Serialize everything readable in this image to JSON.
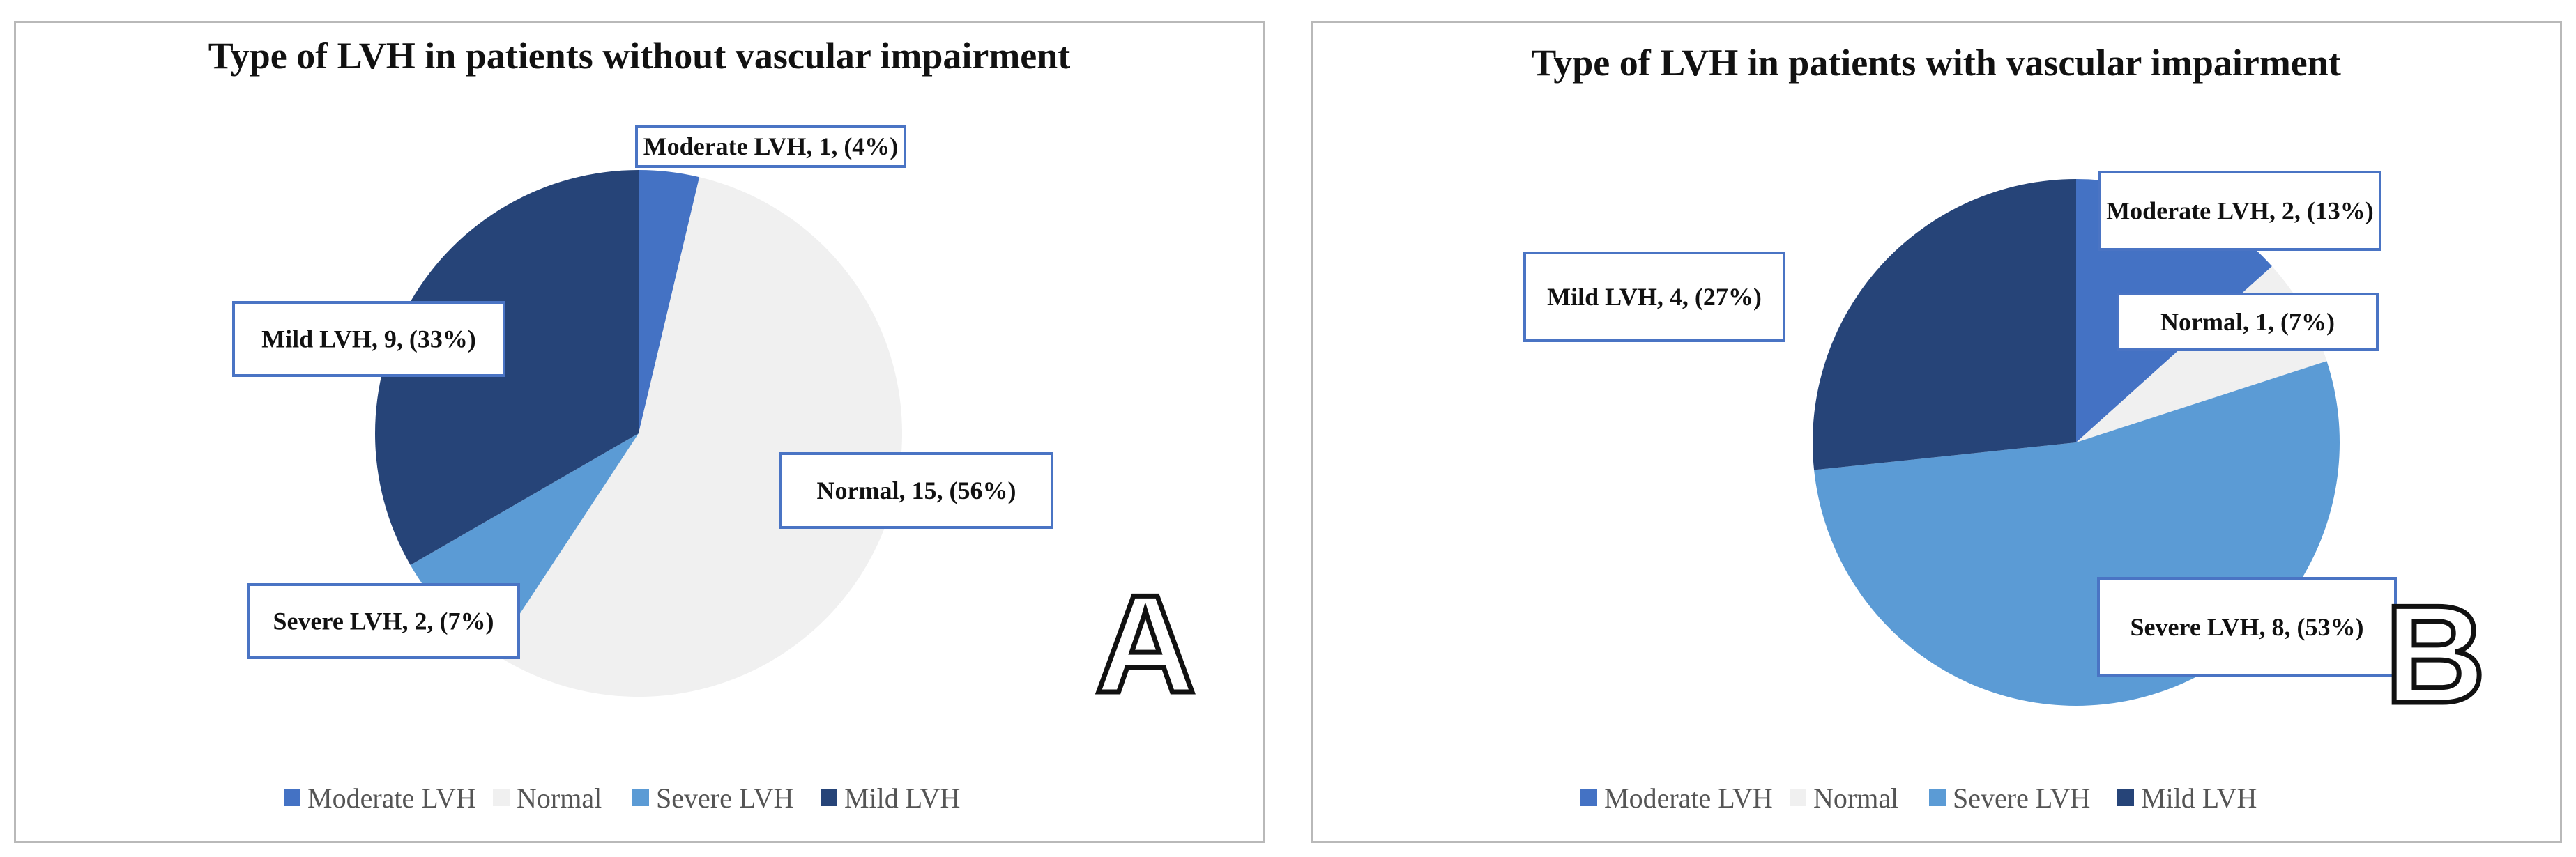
{
  "chart_data": [
    {
      "type": "pie",
      "title": "Type of LVH in patients without vascular impairment",
      "panel_label": "A",
      "categories": [
        "Moderate LVH",
        "Normal",
        "Severe LVH",
        "Mild LVH"
      ],
      "values": [
        1,
        15,
        2,
        9
      ],
      "percent_labels": [
        "(4%)",
        "(56%)",
        "(7%)",
        "(33%)"
      ],
      "data_labels": [
        "Moderate LVH, 1, (4%)",
        "Normal, 15, (56%)",
        "Severe LVH, 2, (7%)",
        "Mild LVH, 9, (33%)"
      ],
      "colors": [
        "#4472c4",
        "#f0f0f0",
        "#5b9bd5",
        "#264478"
      ],
      "legend": [
        "Moderate LVH",
        "Normal",
        "Severe LVH",
        "Mild LVH"
      ],
      "legend_position": "bottom"
    },
    {
      "type": "pie",
      "title": "Type of LVH in patients with vascular impairment",
      "panel_label": "B",
      "categories": [
        "Moderate LVH",
        "Normal",
        "Severe LVH",
        "Mild LVH"
      ],
      "values": [
        2,
        1,
        8,
        4
      ],
      "percent_labels": [
        "(13%)",
        "(7%)",
        "(53%)",
        "(27%)"
      ],
      "data_labels": [
        "Moderate LVH, 2, (13%)",
        "Normal, 1, (7%)",
        "Severe LVH, 8, (53%)",
        "Mild LVH, 4, (27%)"
      ],
      "colors": [
        "#4472c4",
        "#f0f0f0",
        "#5b9bd5",
        "#264478"
      ],
      "legend": [
        "Moderate LVH",
        "Normal",
        "Severe LVH",
        "Mild LVH"
      ],
      "legend_position": "bottom"
    }
  ]
}
